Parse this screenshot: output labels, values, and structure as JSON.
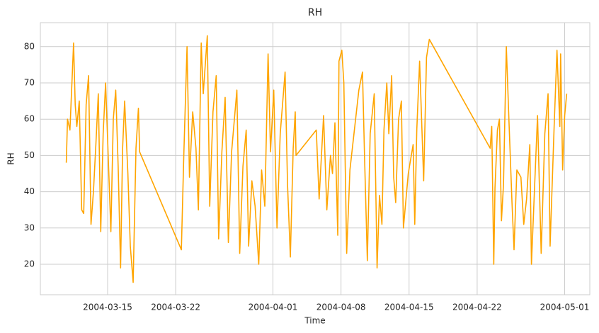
{
  "chart_data": {
    "type": "line",
    "title": "RH",
    "x_label": "Time",
    "y_label": "RH",
    "grid": true,
    "xlim": [
      "2004-03-08 02:00",
      "2004-05-03 14:00"
    ],
    "xticks": [
      "2004-03-15",
      "2004-03-22",
      "2004-04-01",
      "2004-04-08",
      "2004-04-15",
      "2004-04-22",
      "2004-05-01"
    ],
    "ylim": [
      11.6,
      86.6
    ],
    "yticks": [
      20,
      30,
      40,
      50,
      60,
      70,
      80
    ],
    "x": [
      "2004-03-10 18:00",
      "2004-03-10 21:00",
      "2004-03-11 03:00",
      "2004-03-11 12:00",
      "2004-03-11 16:00",
      "2004-03-11 20:00",
      "2004-03-12 02:00",
      "2004-03-12 08:00",
      "2004-03-12 13:00",
      "2004-03-12 19:00",
      "2004-03-13 01:00",
      "2004-03-13 07:00",
      "2004-03-13 13:00",
      "2004-03-13 19:00",
      "2004-03-14 01:00",
      "2004-03-14 07:00",
      "2004-03-14 13:00",
      "2004-03-14 19:00",
      "2004-03-15 03:00",
      "2004-03-15 08:00",
      "2004-03-15 14:00",
      "2004-03-15 20:00",
      "2004-03-16 02:00",
      "2004-03-16 08:00",
      "2004-03-16 13:00",
      "2004-03-16 18:00",
      "2004-03-17 02:00",
      "2004-03-17 08:00",
      "2004-03-17 15:00",
      "2004-03-17 22:00",
      "2004-03-18 04:00",
      "2004-03-18 07:00",
      "2004-03-22 14:00",
      "2004-03-22 20:00",
      "2004-03-23 04:00",
      "2004-03-23 10:00",
      "2004-03-23 18:00",
      "2004-03-24 02:00",
      "2004-03-24 08:00",
      "2004-03-24 15:00",
      "2004-03-24 20:00",
      "2004-03-25 06:00",
      "2004-03-25 12:00",
      "2004-03-25 20:00",
      "2004-03-26 04:00",
      "2004-03-26 10:00",
      "2004-03-26 18:00",
      "2004-03-27 02:00",
      "2004-03-27 10:00",
      "2004-03-27 18:00",
      "2004-03-28 07:00",
      "2004-03-28 14:00",
      "2004-03-28 22:00",
      "2004-03-29 06:00",
      "2004-03-29 12:00",
      "2004-03-29 20:00",
      "2004-03-30 04:00",
      "2004-03-30 13:00",
      "2004-03-30 20:00",
      "2004-03-31 04:00",
      "2004-03-31 12:00",
      "2004-03-31 18:00",
      "2004-04-01 02:00",
      "2004-04-01 10:00",
      "2004-04-01 18:00",
      "2004-04-02 06:00",
      "2004-04-02 12:00",
      "2004-04-02 19:00",
      "2004-04-03 02:00",
      "2004-04-03 07:00",
      "2004-04-03 09:00",
      "2004-04-05 11:00",
      "2004-04-05 18:00",
      "2004-04-06 05:00",
      "2004-04-06 13:00",
      "2004-04-06 22:00",
      "2004-04-07 03:00",
      "2004-04-07 09:00",
      "2004-04-07 16:00",
      "2004-04-07 19:00",
      "2004-04-08 02:00",
      "2004-04-08 07:00",
      "2004-04-08 14:00",
      "2004-04-08 22:00",
      "2004-04-09 20:00",
      "2004-04-10 05:00",
      "2004-04-10 10:00",
      "2004-04-10 17:00",
      "2004-04-11 00:00",
      "2004-04-11 10:00",
      "2004-04-11 17:00",
      "2004-04-11 23:00",
      "2004-04-12 05:00",
      "2004-04-12 10:00",
      "2004-04-12 17:00",
      "2004-04-12 22:00",
      "2004-04-13 05:00",
      "2004-04-13 10:00",
      "2004-04-13 15:00",
      "2004-04-13 22:00",
      "2004-04-14 05:00",
      "2004-04-14 10:00",
      "2004-04-14 22:00",
      "2004-04-15 10:00",
      "2004-04-15 14:00",
      "2004-04-15 19:00",
      "2004-04-16 02:00",
      "2004-04-16 12:00",
      "2004-04-16 19:00",
      "2004-04-17 02:00",
      "2004-04-23 08:00",
      "2004-04-23 12:00",
      "2004-04-23 17:00",
      "2004-04-23 20:00",
      "2004-04-24 02:00",
      "2004-04-24 07:00",
      "2004-04-24 12:00",
      "2004-04-24 17:00",
      "2004-04-25 00:00",
      "2004-04-25 07:00",
      "2004-04-25 14:00",
      "2004-04-25 19:00",
      "2004-04-26 02:00",
      "2004-04-26 12:00",
      "2004-04-26 19:00",
      "2004-04-27 02:00",
      "2004-04-27 10:00",
      "2004-04-27 14:00",
      "2004-04-27 22:00",
      "2004-04-28 05:00",
      "2004-04-28 14:00",
      "2004-04-28 23:00",
      "2004-04-29 07:00",
      "2004-04-29 12:00",
      "2004-04-29 22:00",
      "2004-04-30 05:00",
      "2004-04-30 12:00",
      "2004-04-30 14:00",
      "2004-04-30 19:00",
      "2004-05-01 00:00",
      "2004-05-01 05:00"
    ],
    "series": [
      {
        "name": "RH",
        "color": "#ffa500",
        "values": [
          48,
          60,
          57,
          81,
          64,
          58,
          65,
          35,
          34,
          64,
          72,
          31,
          40,
          53,
          67,
          29,
          56,
          70,
          45,
          29,
          60,
          68,
          47,
          19,
          52,
          65,
          45,
          25,
          15,
          52,
          63,
          51,
          24,
          50,
          80,
          44,
          62,
          52,
          35,
          81,
          67,
          83,
          36,
          62,
          72,
          27,
          51,
          66,
          26,
          51,
          68,
          23,
          47,
          57,
          25,
          43,
          36,
          20,
          46,
          36,
          78,
          51,
          68,
          30,
          56,
          73,
          42,
          22,
          52,
          62,
          50,
          57,
          38,
          61,
          35,
          50,
          45,
          59,
          28,
          76,
          79,
          70,
          23,
          46,
          68,
          73,
          50,
          21,
          56,
          67,
          19,
          39,
          31,
          57,
          70,
          56,
          72,
          44,
          37,
          60,
          65,
          30,
          45,
          53,
          31,
          57,
          76,
          43,
          77,
          82,
          52,
          58,
          20,
          41,
          57,
          60,
          32,
          42,
          80,
          58,
          37,
          24,
          46,
          44,
          31,
          38,
          53,
          20,
          42,
          61,
          23,
          56,
          67,
          25,
          58,
          79,
          58,
          78,
          46,
          61,
          67
        ]
      }
    ]
  }
}
